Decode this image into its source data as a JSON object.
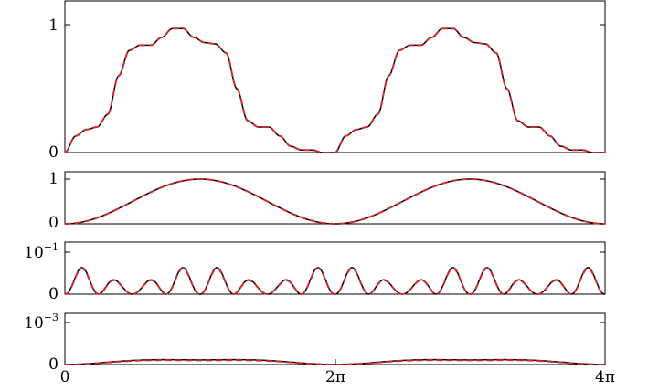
{
  "chart_data": [
    {
      "type": "line",
      "x_range": [
        "0",
        "4π"
      ],
      "ylim": [
        0,
        1
      ],
      "yticks": [
        "0",
        "1"
      ],
      "description_of_series": "sum of harmonics (plateau-shaped), period 2π",
      "series": [
        {
          "color": "#000000",
          "style": "solid",
          "points": [
            [
              0,
              0
            ],
            [
              0.25,
              0.13
            ],
            [
              0.5,
              0.18
            ],
            [
              0.75,
              0.2
            ],
            [
              1.0,
              0.3
            ],
            [
              1.25,
              0.6
            ],
            [
              1.5,
              0.8
            ],
            [
              1.75,
              0.84
            ],
            [
              2.0,
              0.84
            ],
            [
              2.25,
              0.9
            ],
            [
              2.5,
              0.97
            ],
            [
              2.75,
              0.97
            ],
            [
              3.0,
              0.9
            ],
            [
              3.25,
              0.86
            ],
            [
              3.5,
              0.85
            ],
            [
              3.75,
              0.78
            ],
            [
              4.0,
              0.5
            ],
            [
              4.25,
              0.25
            ],
            [
              4.5,
              0.2
            ],
            [
              4.75,
              0.2
            ],
            [
              5.0,
              0.13
            ],
            [
              5.25,
              0.05
            ],
            [
              5.5,
              0.02
            ],
            [
              5.75,
              0.02
            ],
            [
              6.0,
              0.0
            ],
            [
              6.28,
              0.0
            ]
          ]
        },
        {
          "color": "#d62728",
          "style": "dashed",
          "points": [
            [
              0,
              0
            ],
            [
              0.25,
              0.13
            ],
            [
              0.5,
              0.18
            ],
            [
              0.75,
              0.2
            ],
            [
              1.0,
              0.3
            ],
            [
              1.25,
              0.6
            ],
            [
              1.5,
              0.8
            ],
            [
              1.75,
              0.84
            ],
            [
              2.0,
              0.84
            ],
            [
              2.25,
              0.9
            ],
            [
              2.5,
              0.97
            ],
            [
              2.75,
              0.97
            ],
            [
              3.0,
              0.9
            ],
            [
              3.25,
              0.86
            ],
            [
              3.5,
              0.85
            ],
            [
              3.75,
              0.78
            ],
            [
              4.0,
              0.5
            ],
            [
              4.25,
              0.25
            ],
            [
              4.5,
              0.2
            ],
            [
              4.75,
              0.2
            ],
            [
              5.0,
              0.13
            ],
            [
              5.25,
              0.05
            ],
            [
              5.5,
              0.02
            ],
            [
              5.75,
              0.02
            ],
            [
              6.0,
              0.0
            ],
            [
              6.28,
              0.0
            ]
          ]
        }
      ]
    },
    {
      "type": "line",
      "x_range": [
        "0",
        "4π"
      ],
      "ylim": [
        0,
        1
      ],
      "yticks": [
        "0",
        "1"
      ],
      "series": [
        {
          "color": "#000000",
          "style": "solid",
          "function": "sin2_half"
        },
        {
          "color": "#d62728",
          "style": "dashed",
          "function": "sin2_half"
        }
      ]
    },
    {
      "type": "line",
      "x_range": [
        "0",
        "4π"
      ],
      "ylim": [
        0,
        0.1
      ],
      "yticks": [
        "0",
        "10^-1"
      ],
      "series": [
        {
          "color": "#000000",
          "style": "solid",
          "function": "bumps_small"
        },
        {
          "color": "#d62728",
          "style": "dashed",
          "function": "bumps_small"
        }
      ]
    },
    {
      "type": "line",
      "x_range": [
        "0",
        "4π"
      ],
      "ylim": [
        0,
        0.001
      ],
      "yticks": [
        "0",
        "10^-3"
      ],
      "xticks": [
        "0",
        "2π",
        "4π"
      ],
      "series": [
        {
          "color": "#000000",
          "style": "solid",
          "function": "tiny"
        },
        {
          "color": "#d62728",
          "style": "dashed",
          "function": "tiny"
        }
      ]
    }
  ],
  "labels": {
    "p1_y0": "0",
    "p1_y1": "1",
    "p2_y0": "0",
    "p2_y1": "1",
    "p3_y0": "0",
    "p3_y1_base": "10",
    "p3_y1_exp": "−1",
    "p4_y0": "0",
    "p4_y1_base": "10",
    "p4_y1_exp": "−3",
    "x0": "0",
    "x1": "2π",
    "x2": "4π"
  },
  "colors": {
    "black": "#000000",
    "red": "#d62728"
  }
}
